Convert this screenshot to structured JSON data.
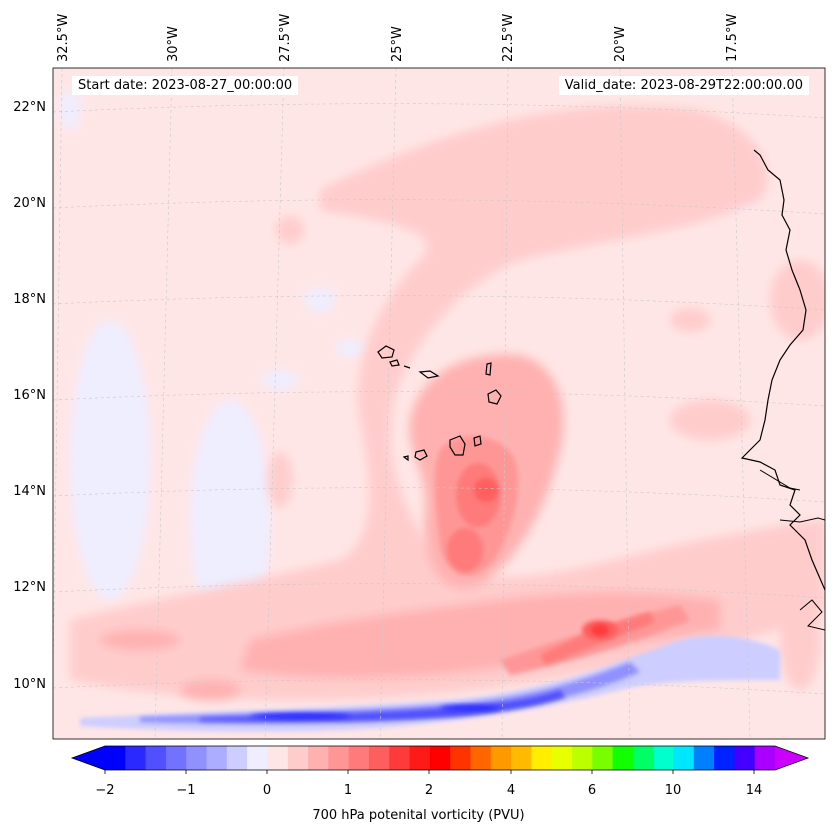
{
  "map": {
    "start_date": "Start date: 2023-08-27_00:00:00",
    "valid_date": "Valid_date: 2023-08-29T22:00:00.00",
    "longitude_labels": [
      "32.5°W",
      "30°W",
      "27.5°W",
      "25°W",
      "22.5°W",
      "20°W",
      "17.5°W"
    ],
    "latitude_labels": [
      "22°N",
      "20°N",
      "18°N",
      "16°N",
      "14°N",
      "12°N",
      "10°N"
    ],
    "variable": "700 hPa potential vorticity",
    "units": "PVU"
  },
  "colorbar": {
    "label": "700 hPa potenital vorticity (PVU)",
    "tick_labels": [
      "−2",
      "−1",
      "0",
      "1",
      "2",
      "4",
      "6",
      "10",
      "14"
    ],
    "colors": [
      "#0000ff",
      "#2a2aff",
      "#5050ff",
      "#7272ff",
      "#9090ff",
      "#adadff",
      "#cdcdff",
      "#eeeeff",
      "#ffe6e6",
      "#ffcccc",
      "#ffb1b1",
      "#ff9696",
      "#ff7a7a",
      "#ff5e5e",
      "#ff3a3a",
      "#ff1a1a",
      "#ff0000",
      "#ff3300",
      "#ff6600",
      "#ff9900",
      "#ffbb00",
      "#ffee00",
      "#e8ff00",
      "#bbff00",
      "#77ff00",
      "#11ff00",
      "#00ff66",
      "#00ffcc",
      "#00e6ff",
      "#0080ff",
      "#0022ff",
      "#4400ff",
      "#aa00ff"
    ],
    "under_color": "#0000ff",
    "over_color": "#cc00ff"
  }
}
